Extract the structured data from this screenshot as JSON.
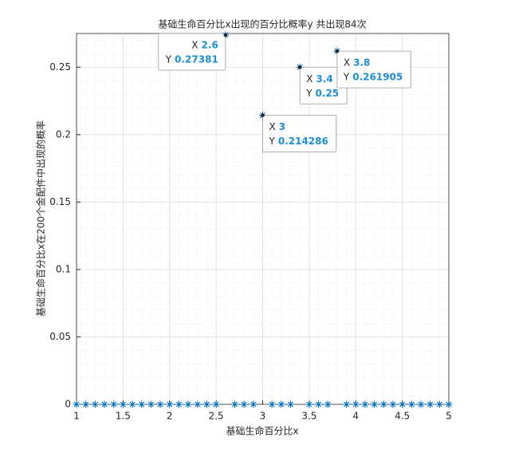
{
  "chart_data": {
    "type": "scatter",
    "title": "基础生命百分比x出现的百分比概率y    共出现84次",
    "xlabel": "基础生命百分比x",
    "ylabel": "基础生命百分比x在200个金配件中出现的概率",
    "x": [
      1,
      1.1,
      1.2,
      1.3,
      1.4,
      1.5,
      1.6,
      1.7,
      1.8,
      1.9,
      2,
      2.1,
      2.2,
      2.3,
      2.4,
      2.5,
      2.6,
      2.7,
      2.8,
      2.9,
      3,
      3.1,
      3.2,
      3.3,
      3.4,
      3.5,
      3.6,
      3.7,
      3.8,
      3.9,
      4,
      4.1,
      4.2,
      4.3,
      4.4,
      4.5,
      4.6,
      4.7,
      4.8,
      4.9,
      5
    ],
    "values": [
      0,
      0,
      0,
      0,
      0,
      0,
      0,
      0,
      0,
      0,
      0,
      0,
      0,
      0,
      0,
      0,
      0.27381,
      0,
      0,
      0,
      0.214286,
      0,
      0,
      0,
      0.25,
      0,
      0,
      0,
      0.261905,
      0,
      0,
      0,
      0,
      0,
      0,
      0,
      0,
      0,
      0,
      0,
      0
    ],
    "color": "#0072bd",
    "marker": "asterisk",
    "xlim": [
      1,
      5
    ],
    "ylim": [
      0,
      0.275
    ],
    "xticks": [
      1,
      1.5,
      2,
      2.5,
      3,
      3.5,
      4,
      4.5,
      5
    ],
    "yticks": [
      0,
      0.05,
      0.1,
      0.15,
      0.2,
      0.25
    ],
    "xminorticks": [
      1.1,
      1.2,
      1.3,
      1.4,
      1.6,
      1.7,
      1.8,
      1.9,
      2.1,
      2.2,
      2.3,
      2.4,
      2.6,
      2.7,
      2.8,
      2.9,
      3.1,
      3.2,
      3.3,
      3.4,
      3.6,
      3.7,
      3.8,
      3.9,
      4.1,
      4.2,
      4.3,
      4.4,
      4.6,
      4.7,
      4.8,
      4.9
    ],
    "yminorticks": [
      0.01,
      0.02,
      0.03,
      0.04,
      0.06,
      0.07,
      0.08,
      0.09,
      0.11,
      0.12,
      0.13,
      0.14,
      0.16,
      0.17,
      0.18,
      0.19,
      0.21,
      0.22,
      0.23,
      0.24,
      0.26,
      0.27
    ],
    "grid": true,
    "minor_grid": true,
    "datatip_x_label": "X",
    "datatip_y_label": "Y",
    "datatips": [
      {
        "x": 2.6,
        "y": 0.27381
      },
      {
        "x": 3.4,
        "y": 0.25
      },
      {
        "x": 3.8,
        "y": 0.261905
      },
      {
        "x": 3,
        "y": 0.214286
      }
    ]
  }
}
